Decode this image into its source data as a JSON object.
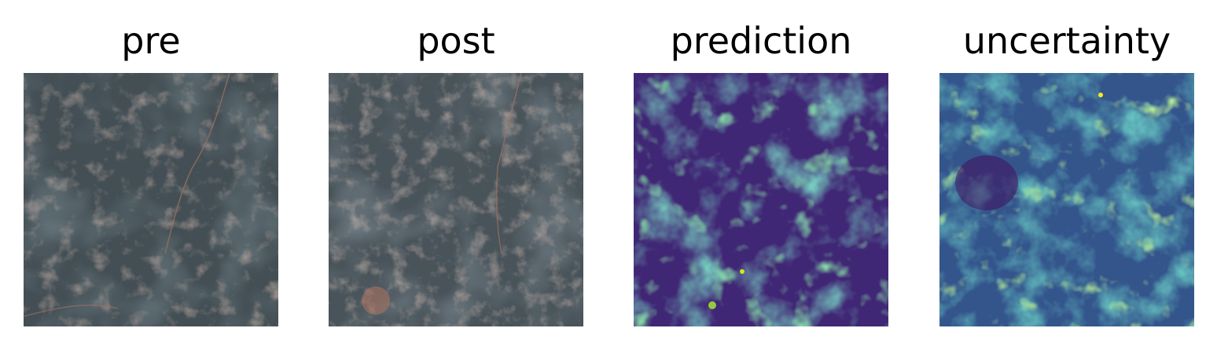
{
  "panels": [
    {
      "title": "pre",
      "kind": "satellite",
      "palette": [
        "#3d4a50",
        "#465359",
        "#55585a",
        "#8a6a5e",
        "#b08170"
      ]
    },
    {
      "title": "post",
      "kind": "satellite",
      "palette": [
        "#424e54",
        "#4b565b",
        "#5e5e5e",
        "#8b6e62",
        "#b58772"
      ]
    },
    {
      "title": "prediction",
      "kind": "heatmap",
      "colormap": "viridis"
    },
    {
      "title": "uncertainty",
      "kind": "heatmap",
      "colormap": "viridis"
    }
  ]
}
